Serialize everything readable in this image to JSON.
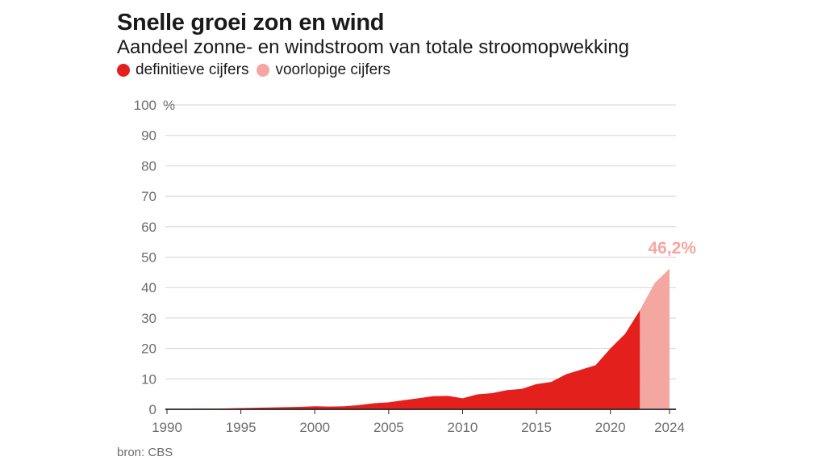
{
  "chart_data": {
    "type": "area",
    "title": "Snelle groei zon en wind",
    "subtitle": "Aandeel zonne- en windstroom van totale stroomopwekking",
    "y_unit": "%",
    "ylim": [
      0,
      100
    ],
    "y_ticks": [
      0,
      10,
      20,
      30,
      40,
      50,
      60,
      70,
      80,
      90,
      100
    ],
    "x_ticks": [
      1990,
      1995,
      2000,
      2005,
      2010,
      2015,
      2020,
      2024
    ],
    "xlim": [
      1990,
      2024
    ],
    "grid": true,
    "legend_position": "top-left",
    "x": [
      1990,
      1991,
      1992,
      1993,
      1994,
      1995,
      1996,
      1997,
      1998,
      1999,
      2000,
      2001,
      2002,
      2003,
      2004,
      2005,
      2006,
      2007,
      2008,
      2009,
      2010,
      2011,
      2012,
      2013,
      2014,
      2015,
      2016,
      2017,
      2018,
      2019,
      2020,
      2021,
      2022,
      2023,
      2024
    ],
    "series": [
      {
        "name": "definitieve cijfers",
        "color": "#e3201b",
        "x": [
          1990,
          1991,
          1992,
          1993,
          1994,
          1995,
          1996,
          1997,
          1998,
          1999,
          2000,
          2001,
          2002,
          2003,
          2004,
          2005,
          2006,
          2007,
          2008,
          2009,
          2010,
          2011,
          2012,
          2013,
          2014,
          2015,
          2016,
          2017,
          2018,
          2019,
          2020,
          2021,
          2022
        ],
        "values": [
          0.1,
          0.1,
          0.2,
          0.2,
          0.3,
          0.4,
          0.5,
          0.6,
          0.7,
          0.8,
          1.0,
          0.9,
          1.0,
          1.4,
          2.0,
          2.3,
          3.0,
          3.6,
          4.3,
          4.4,
          3.6,
          4.9,
          5.3,
          6.3,
          6.7,
          8.3,
          9.0,
          11.5,
          13.0,
          14.5,
          20.0,
          24.8,
          32.6
        ]
      },
      {
        "name": "voorlopige cijfers",
        "color": "#f4a6a1",
        "x": [
          2022,
          2023,
          2024
        ],
        "values": [
          32.6,
          41.5,
          46.2
        ]
      }
    ],
    "annotations": [
      {
        "text": "46,2%",
        "x": 2024,
        "y": 46.2
      }
    ]
  },
  "source": "bron: CBS"
}
